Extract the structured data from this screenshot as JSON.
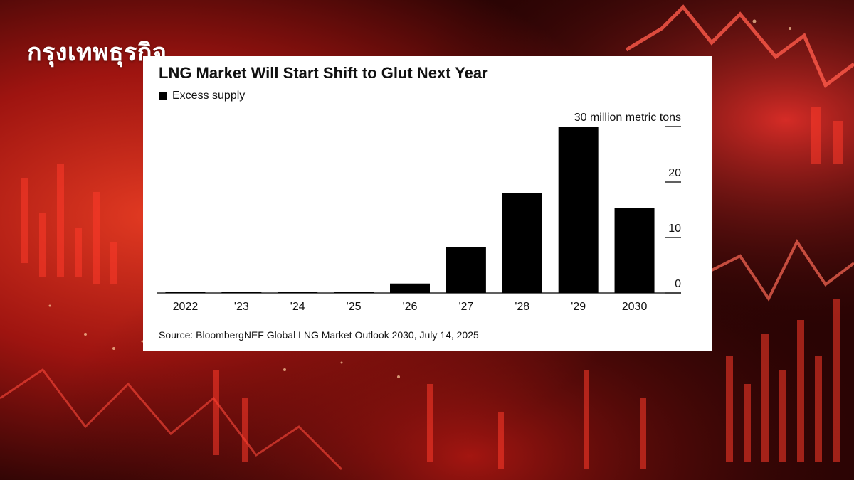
{
  "brand": {
    "name": "กรุงเทพธุรกิจ"
  },
  "colors": {
    "bar": "#000000",
    "card": "#ffffff",
    "text": "#111111",
    "background": "#3a0606"
  },
  "chart_data": {
    "type": "bar",
    "title": "LNG Market Will Start Shift to Glut Next Year",
    "legend": [
      {
        "name": "Excess supply",
        "color": "#000000"
      }
    ],
    "categories": [
      "2022",
      "'23",
      "'24",
      "'25",
      "'26",
      "'27",
      "'28",
      "'29",
      "2030"
    ],
    "series": [
      {
        "name": "Excess supply",
        "values": [
          0,
          0,
          0,
          0,
          1.7,
          8.3,
          18,
          30,
          15.3
        ]
      }
    ],
    "ylim": [
      0,
      30
    ],
    "yticks": [
      0,
      10,
      20,
      30
    ],
    "ytick_labels": [
      "0",
      "10",
      "20",
      "30 million metric tons"
    ],
    "ylabel": "million metric tons",
    "axis_position": "right",
    "source": "Source: BloombergNEF Global LNG Market Outlook 2030, July 14, 2025"
  }
}
